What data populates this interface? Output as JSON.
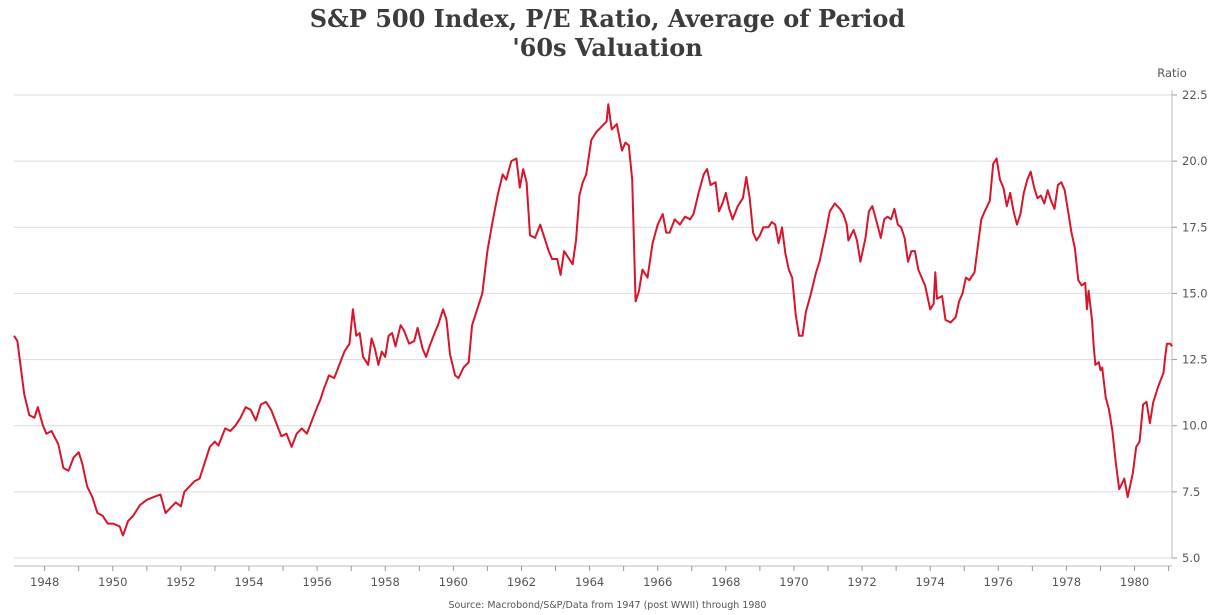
{
  "chart_data": {
    "type": "line",
    "title": "S&P 500 Index, P/E Ratio, Average of Period",
    "subtitle": "'60s Valuation",
    "ylabel": "Ratio",
    "source": "Source: Macrobond/S&P/Data from 1947 (post WWII) through 1980",
    "xlim": [
      1947.1,
      1981.1
    ],
    "ylim": [
      5.0,
      22.5
    ],
    "x_ticks": [
      "1948",
      "1950",
      "1952",
      "1954",
      "1956",
      "1958",
      "1960",
      "1962",
      "1964",
      "1966",
      "1968",
      "1970",
      "1972",
      "1974",
      "1976",
      "1978",
      "1980"
    ],
    "y_ticks": [
      "5.0",
      "7.5",
      "10.0",
      "12.5",
      "15.0",
      "17.5",
      "20.0",
      "22.5"
    ],
    "y_tick_values": [
      5.0,
      7.5,
      10.0,
      12.5,
      15.0,
      17.5,
      20.0,
      22.5
    ],
    "grid": true,
    "line_color": "#d7152b",
    "series": [
      {
        "points": [
          [
            1947.1,
            13.4
          ],
          [
            1947.2,
            13.2
          ],
          [
            1947.4,
            11.2
          ],
          [
            1947.55,
            10.4
          ],
          [
            1947.7,
            10.3
          ],
          [
            1947.8,
            10.7
          ],
          [
            1947.95,
            10.0
          ],
          [
            1948.05,
            9.7
          ],
          [
            1948.2,
            9.8
          ],
          [
            1948.4,
            9.3
          ],
          [
            1948.55,
            8.4
          ],
          [
            1948.7,
            8.3
          ],
          [
            1948.85,
            8.8
          ],
          [
            1949.0,
            9.0
          ],
          [
            1949.1,
            8.6
          ],
          [
            1949.25,
            7.7
          ],
          [
            1949.4,
            7.3
          ],
          [
            1949.55,
            6.7
          ],
          [
            1949.7,
            6.6
          ],
          [
            1949.85,
            6.3
          ],
          [
            1950.0,
            6.3
          ],
          [
            1950.2,
            6.2
          ],
          [
            1950.3,
            5.85
          ],
          [
            1950.45,
            6.4
          ],
          [
            1950.6,
            6.6
          ],
          [
            1950.8,
            7.0
          ],
          [
            1951.0,
            7.2
          ],
          [
            1951.2,
            7.3
          ],
          [
            1951.4,
            7.4
          ],
          [
            1951.55,
            6.7
          ],
          [
            1951.7,
            6.9
          ],
          [
            1951.85,
            7.1
          ],
          [
            1952.0,
            6.95
          ],
          [
            1952.1,
            7.5
          ],
          [
            1952.25,
            7.7
          ],
          [
            1952.4,
            7.9
          ],
          [
            1952.55,
            8.0
          ],
          [
            1952.7,
            8.6
          ],
          [
            1952.85,
            9.2
          ],
          [
            1953.0,
            9.4
          ],
          [
            1953.1,
            9.25
          ],
          [
            1953.3,
            9.9
          ],
          [
            1953.45,
            9.8
          ],
          [
            1953.6,
            10.0
          ],
          [
            1953.75,
            10.3
          ],
          [
            1953.9,
            10.7
          ],
          [
            1954.05,
            10.6
          ],
          [
            1954.2,
            10.2
          ],
          [
            1954.35,
            10.8
          ],
          [
            1954.5,
            10.9
          ],
          [
            1954.65,
            10.6
          ],
          [
            1954.8,
            10.1
          ],
          [
            1954.95,
            9.6
          ],
          [
            1955.1,
            9.7
          ],
          [
            1955.25,
            9.2
          ],
          [
            1955.4,
            9.7
          ],
          [
            1955.55,
            9.9
          ],
          [
            1955.7,
            9.7
          ],
          [
            1955.85,
            10.2
          ],
          [
            1956.0,
            10.7
          ],
          [
            1956.1,
            11.0
          ],
          [
            1956.2,
            11.4
          ],
          [
            1956.35,
            11.9
          ],
          [
            1956.5,
            11.8
          ],
          [
            1956.65,
            12.3
          ],
          [
            1956.8,
            12.8
          ],
          [
            1956.95,
            13.1
          ],
          [
            1957.05,
            14.4
          ],
          [
            1957.15,
            13.4
          ],
          [
            1957.25,
            13.5
          ],
          [
            1957.35,
            12.6
          ],
          [
            1957.5,
            12.3
          ],
          [
            1957.6,
            13.3
          ],
          [
            1957.7,
            12.9
          ],
          [
            1957.8,
            12.3
          ],
          [
            1957.9,
            12.8
          ],
          [
            1958.0,
            12.6
          ],
          [
            1958.1,
            13.4
          ],
          [
            1958.2,
            13.5
          ],
          [
            1958.3,
            13.0
          ],
          [
            1958.45,
            13.8
          ],
          [
            1958.55,
            13.6
          ],
          [
            1958.7,
            13.1
          ],
          [
            1958.85,
            13.2
          ],
          [
            1958.95,
            13.7
          ],
          [
            1959.1,
            12.9
          ],
          [
            1959.2,
            12.6
          ],
          [
            1959.3,
            13.0
          ],
          [
            1959.45,
            13.5
          ],
          [
            1959.55,
            13.8
          ],
          [
            1959.7,
            14.4
          ],
          [
            1959.8,
            14.0
          ],
          [
            1959.9,
            12.7
          ],
          [
            1960.05,
            11.9
          ],
          [
            1960.15,
            11.8
          ],
          [
            1960.3,
            12.2
          ],
          [
            1960.45,
            12.4
          ],
          [
            1960.55,
            13.8
          ],
          [
            1960.7,
            14.4
          ],
          [
            1960.85,
            15.0
          ],
          [
            1961.0,
            16.6
          ],
          [
            1961.15,
            17.7
          ],
          [
            1961.3,
            18.7
          ],
          [
            1961.45,
            19.5
          ],
          [
            1961.55,
            19.3
          ],
          [
            1961.7,
            20.0
          ],
          [
            1961.85,
            20.1
          ],
          [
            1961.95,
            19.0
          ],
          [
            1962.05,
            19.7
          ],
          [
            1962.15,
            19.2
          ],
          [
            1962.25,
            17.2
          ],
          [
            1962.4,
            17.1
          ],
          [
            1962.55,
            17.6
          ],
          [
            1962.65,
            17.2
          ],
          [
            1962.8,
            16.6
          ],
          [
            1962.9,
            16.3
          ],
          [
            1963.05,
            16.3
          ],
          [
            1963.15,
            15.7
          ],
          [
            1963.25,
            16.6
          ],
          [
            1963.4,
            16.3
          ],
          [
            1963.5,
            16.1
          ],
          [
            1963.6,
            17.0
          ],
          [
            1963.7,
            18.7
          ],
          [
            1963.8,
            19.2
          ],
          [
            1963.9,
            19.5
          ],
          [
            1964.05,
            20.8
          ],
          [
            1964.2,
            21.1
          ],
          [
            1964.35,
            21.3
          ],
          [
            1964.5,
            21.5
          ],
          [
            1964.55,
            22.15
          ],
          [
            1964.65,
            21.2
          ],
          [
            1964.8,
            21.4
          ],
          [
            1964.95,
            20.4
          ],
          [
            1965.05,
            20.7
          ],
          [
            1965.15,
            20.6
          ],
          [
            1965.25,
            19.3
          ],
          [
            1965.35,
            14.7
          ],
          [
            1965.45,
            15.1
          ],
          [
            1965.55,
            15.9
          ],
          [
            1965.7,
            15.6
          ],
          [
            1965.85,
            16.9
          ],
          [
            1966.0,
            17.6
          ],
          [
            1966.15,
            18.0
          ],
          [
            1966.25,
            17.3
          ],
          [
            1966.35,
            17.3
          ],
          [
            1966.5,
            17.8
          ],
          [
            1966.65,
            17.6
          ],
          [
            1966.8,
            17.9
          ],
          [
            1966.95,
            17.8
          ],
          [
            1967.05,
            18.0
          ],
          [
            1967.2,
            18.8
          ],
          [
            1967.35,
            19.5
          ],
          [
            1967.45,
            19.7
          ],
          [
            1967.55,
            19.1
          ],
          [
            1967.7,
            19.2
          ],
          [
            1967.8,
            18.1
          ],
          [
            1967.9,
            18.4
          ],
          [
            1968.0,
            18.8
          ],
          [
            1968.1,
            18.2
          ],
          [
            1968.2,
            17.8
          ],
          [
            1968.35,
            18.3
          ],
          [
            1968.5,
            18.6
          ],
          [
            1968.6,
            19.4
          ],
          [
            1968.7,
            18.6
          ],
          [
            1968.8,
            17.3
          ],
          [
            1968.9,
            17.0
          ],
          [
            1969.0,
            17.2
          ],
          [
            1969.1,
            17.5
          ],
          [
            1969.25,
            17.5
          ],
          [
            1969.35,
            17.7
          ],
          [
            1969.45,
            17.6
          ],
          [
            1969.55,
            16.9
          ],
          [
            1969.65,
            17.5
          ],
          [
            1969.75,
            16.5
          ],
          [
            1969.85,
            15.9
          ],
          [
            1969.95,
            15.6
          ],
          [
            1970.05,
            14.2
          ],
          [
            1970.15,
            13.4
          ],
          [
            1970.25,
            13.4
          ],
          [
            1970.35,
            14.3
          ],
          [
            1970.5,
            15.0
          ],
          [
            1970.65,
            15.8
          ],
          [
            1970.75,
            16.2
          ],
          [
            1970.85,
            16.8
          ],
          [
            1970.95,
            17.4
          ],
          [
            1971.05,
            18.1
          ],
          [
            1971.2,
            18.4
          ],
          [
            1971.35,
            18.2
          ],
          [
            1971.45,
            18.0
          ],
          [
            1971.55,
            17.6
          ],
          [
            1971.6,
            17.0
          ],
          [
            1971.75,
            17.4
          ],
          [
            1971.85,
            17.0
          ],
          [
            1971.95,
            16.2
          ],
          [
            1972.1,
            17.1
          ],
          [
            1972.2,
            18.1
          ],
          [
            1972.3,
            18.3
          ],
          [
            1972.45,
            17.6
          ],
          [
            1972.55,
            17.1
          ],
          [
            1972.65,
            17.8
          ],
          [
            1972.75,
            17.9
          ],
          [
            1972.85,
            17.8
          ],
          [
            1972.95,
            18.2
          ],
          [
            1973.05,
            17.6
          ],
          [
            1973.15,
            17.5
          ],
          [
            1973.25,
            17.1
          ],
          [
            1973.35,
            16.2
          ],
          [
            1973.45,
            16.6
          ],
          [
            1973.55,
            16.6
          ],
          [
            1973.65,
            15.9
          ],
          [
            1973.75,
            15.6
          ],
          [
            1973.85,
            15.3
          ],
          [
            1974.0,
            14.4
          ],
          [
            1974.1,
            14.6
          ],
          [
            1974.15,
            15.8
          ],
          [
            1974.2,
            14.8
          ],
          [
            1974.35,
            14.9
          ],
          [
            1974.45,
            14.0
          ],
          [
            1974.6,
            13.9
          ],
          [
            1974.75,
            14.1
          ],
          [
            1974.85,
            14.7
          ],
          [
            1974.95,
            15.0
          ],
          [
            1975.05,
            15.6
          ],
          [
            1975.15,
            15.5
          ],
          [
            1975.3,
            15.8
          ],
          [
            1975.4,
            16.8
          ],
          [
            1975.5,
            17.8
          ],
          [
            1975.6,
            18.1
          ],
          [
            1975.75,
            18.5
          ],
          [
            1975.85,
            19.9
          ],
          [
            1975.95,
            20.1
          ],
          [
            1976.05,
            19.3
          ],
          [
            1976.15,
            19.0
          ],
          [
            1976.25,
            18.3
          ],
          [
            1976.35,
            18.8
          ],
          [
            1976.45,
            18.1
          ],
          [
            1976.55,
            17.6
          ],
          [
            1976.65,
            18.0
          ],
          [
            1976.75,
            18.8
          ],
          [
            1976.85,
            19.3
          ],
          [
            1976.95,
            19.6
          ],
          [
            1977.05,
            19.0
          ],
          [
            1977.15,
            18.6
          ],
          [
            1977.25,
            18.7
          ],
          [
            1977.35,
            18.4
          ],
          [
            1977.45,
            18.9
          ],
          [
            1977.55,
            18.5
          ],
          [
            1977.65,
            18.2
          ],
          [
            1977.75,
            19.1
          ],
          [
            1977.85,
            19.2
          ],
          [
            1977.95,
            18.9
          ],
          [
            1978.05,
            18.1
          ],
          [
            1978.15,
            17.3
          ],
          [
            1978.25,
            16.7
          ],
          [
            1978.35,
            15.5
          ],
          [
            1978.45,
            15.3
          ],
          [
            1978.55,
            15.4
          ],
          [
            1978.6,
            14.4
          ],
          [
            1978.65,
            15.1
          ],
          [
            1978.75,
            14.0
          ],
          [
            1978.8,
            13.0
          ],
          [
            1978.85,
            12.3
          ],
          [
            1978.95,
            12.4
          ],
          [
            1979.0,
            12.1
          ],
          [
            1979.05,
            12.2
          ],
          [
            1979.15,
            11.1
          ],
          [
            1979.25,
            10.6
          ],
          [
            1979.35,
            9.8
          ],
          [
            1979.45,
            8.6
          ],
          [
            1979.55,
            7.6
          ],
          [
            1979.7,
            8.0
          ],
          [
            1979.8,
            7.3
          ],
          [
            1979.95,
            8.2
          ],
          [
            1980.05,
            9.2
          ],
          [
            1980.15,
            9.4
          ],
          [
            1980.25,
            10.8
          ],
          [
            1980.35,
            10.9
          ],
          [
            1980.45,
            10.1
          ],
          [
            1980.55,
            10.9
          ],
          [
            1980.7,
            11.5
          ],
          [
            1980.85,
            12.0
          ],
          [
            1980.9,
            12.6
          ],
          [
            1980.95,
            13.1
          ],
          [
            1981.05,
            13.1
          ],
          [
            1981.1,
            13.0
          ]
        ]
      }
    ]
  },
  "scale": {
    "x_time_from": [
      1947.1,
      1981.1
    ],
    "x_time_to": [
      1947.1,
      1981.1
    ]
  }
}
